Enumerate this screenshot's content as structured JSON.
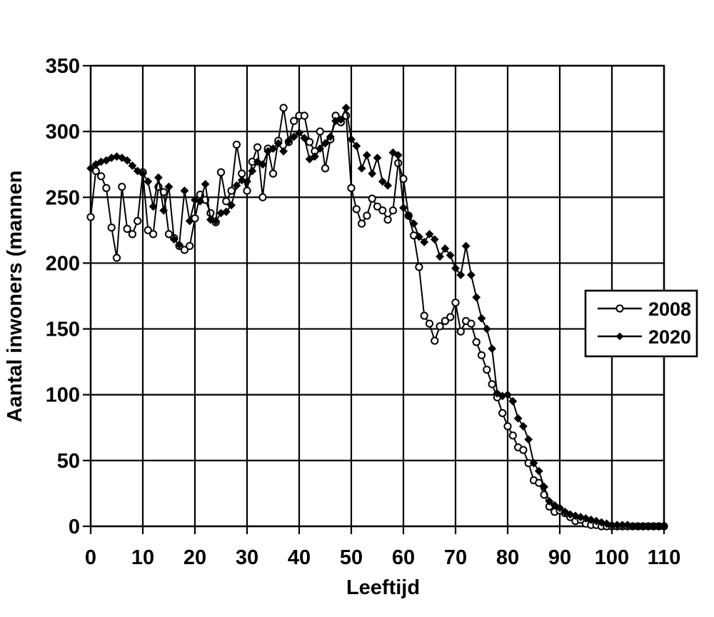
{
  "page": {
    "background": "#ffffff",
    "foreground": "#000000"
  },
  "chart_data": {
    "type": "line",
    "title": "",
    "xlabel": "Leeftijd",
    "ylabel": "Aantal inwoners (mannen",
    "xlim": [
      0,
      110
    ],
    "ylim": [
      0,
      350
    ],
    "xticks": [
      0,
      10,
      20,
      30,
      40,
      50,
      60,
      70,
      80,
      90,
      100,
      110
    ],
    "yticks": [
      0,
      50,
      100,
      150,
      200,
      250,
      300,
      350
    ],
    "grid": true,
    "line_color": "#000000",
    "legend_position": "right-middle",
    "x": [
      0,
      1,
      2,
      3,
      4,
      5,
      6,
      7,
      8,
      9,
      10,
      11,
      12,
      13,
      14,
      15,
      16,
      17,
      18,
      19,
      20,
      21,
      22,
      23,
      24,
      25,
      26,
      27,
      28,
      29,
      30,
      31,
      32,
      33,
      34,
      35,
      36,
      37,
      38,
      39,
      40,
      41,
      42,
      43,
      44,
      45,
      46,
      47,
      48,
      49,
      50,
      51,
      52,
      53,
      54,
      55,
      56,
      57,
      58,
      59,
      60,
      61,
      62,
      63,
      64,
      65,
      66,
      67,
      68,
      69,
      70,
      71,
      72,
      73,
      74,
      75,
      76,
      77,
      78,
      79,
      80,
      81,
      82,
      83,
      84,
      85,
      86,
      87,
      88,
      89,
      90,
      91,
      92,
      93,
      94,
      95,
      96,
      97,
      98,
      99,
      100,
      101,
      102,
      103,
      104,
      105,
      106,
      107,
      108,
      109,
      110
    ],
    "series": [
      {
        "name": "2008",
        "marker": "open-circle",
        "color": "#000000",
        "values": [
          235,
          270,
          266,
          257,
          227,
          204,
          258,
          226,
          222,
          232,
          269,
          225,
          222,
          258,
          254,
          222,
          219,
          213,
          210,
          213,
          234,
          252,
          248,
          238,
          231,
          269,
          247,
          255,
          290,
          268,
          255,
          277,
          288,
          250,
          287,
          268,
          293,
          318,
          292,
          308,
          312,
          312,
          292,
          285,
          300,
          272,
          294,
          312,
          307,
          312,
          257,
          241,
          230,
          236,
          249,
          243,
          240,
          233,
          240,
          276,
          264,
          236,
          221,
          197,
          160,
          154,
          141,
          152,
          156,
          159,
          170,
          148,
          156,
          154,
          140,
          130,
          119,
          108,
          98,
          86,
          76,
          69,
          60,
          58,
          48,
          35,
          33,
          24,
          15,
          11,
          12,
          10,
          7,
          4,
          5,
          2,
          1,
          1,
          0,
          0,
          0,
          0,
          0,
          0,
          0,
          0,
          0,
          0,
          0,
          0,
          0
        ]
      },
      {
        "name": "2020",
        "marker": "filled-diamond",
        "color": "#000000",
        "values": [
          272,
          275,
          277,
          278,
          280,
          281,
          280,
          278,
          274,
          270,
          268,
          262,
          243,
          265,
          240,
          258,
          218,
          214,
          255,
          232,
          248,
          247,
          260,
          233,
          232,
          238,
          239,
          244,
          259,
          263,
          262,
          270,
          277,
          275,
          285,
          287,
          291,
          285,
          293,
          296,
          299,
          295,
          279,
          281,
          287,
          291,
          296,
          308,
          309,
          318,
          294,
          289,
          272,
          282,
          268,
          280,
          262,
          259,
          284,
          282,
          242,
          236,
          230,
          220,
          216,
          222,
          218,
          205,
          211,
          206,
          196,
          191,
          213,
          191,
          174,
          158,
          150,
          135,
          101,
          99,
          100,
          95,
          82,
          76,
          66,
          48,
          42,
          30,
          19,
          16,
          14,
          11,
          9,
          8,
          7,
          6,
          5,
          4,
          3,
          2,
          1,
          1,
          1,
          1,
          0,
          0,
          0,
          0,
          0,
          0,
          0
        ]
      }
    ]
  }
}
